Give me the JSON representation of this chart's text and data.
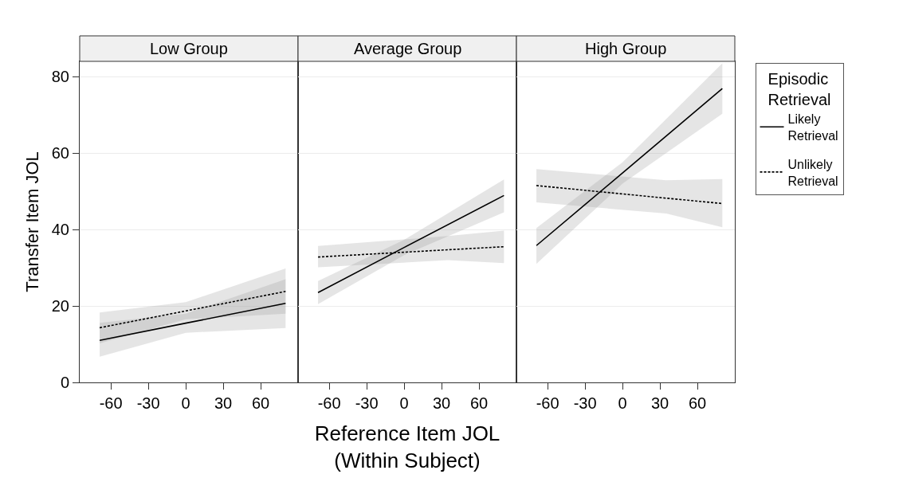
{
  "chart_data": [
    {
      "type": "line",
      "title": "Low Group",
      "ylabel": "Transfer Item JOL",
      "xlim": [
        -85,
        90
      ],
      "xticks": [
        -60,
        -30,
        0,
        30,
        60
      ],
      "ylim": [
        0,
        84
      ],
      "yticks": [
        0,
        20,
        40,
        60,
        80
      ],
      "grid": "y",
      "legend": "right",
      "x": [
        -69,
        0,
        80
      ],
      "series": [
        {
          "name": "Likely\nRetrieval",
          "color": "#000000",
          "line_style": "solid",
          "values": [
            11,
            15.5,
            20.7
          ],
          "lower": [
            6.7,
            13,
            14.2
          ],
          "upper": [
            15.6,
            18,
            27
          ]
        },
        {
          "name": "Unlikely\nRetrieval",
          "color": "#000000",
          "line_style": "dotted",
          "values": [
            14.3,
            18.7,
            23.8
          ],
          "lower": [
            10.2,
            16.5,
            18
          ],
          "upper": [
            18.3,
            21,
            29.8
          ]
        }
      ]
    },
    {
      "type": "line",
      "title": "Average Group",
      "xlabel": "Reference Item JOL\n(Within Subject)",
      "xlim": [
        -85,
        90
      ],
      "xticks": [
        -60,
        -30,
        0,
        30,
        60
      ],
      "ylim": [
        0,
        84
      ],
      "yticks": [
        0,
        20,
        40,
        60,
        80
      ],
      "grid": "y",
      "legend": "right",
      "tick_labels": "x",
      "x": [
        -69,
        0,
        80
      ],
      "series": [
        {
          "name": "Likely\nRetrieval",
          "color": "#000000",
          "line_style": "solid",
          "values": [
            23.5,
            35.3,
            48.9
          ],
          "lower": [
            20.5,
            33.3,
            44.5
          ],
          "upper": [
            26.5,
            37.3,
            53.1
          ]
        },
        {
          "name": "Unlikely\nRetrieval",
          "color": "#000000",
          "line_style": "dotted",
          "x": [
            -69,
            35,
            80
          ],
          "values": [
            32.8,
            34.7,
            35.5
          ],
          "lower": [
            30.1,
            32.0,
            31.2
          ],
          "upper": [
            35.7,
            38.3,
            39.7
          ]
        }
      ]
    },
    {
      "type": "line",
      "title": "High Group",
      "legend_title": "Episodic\nRetrieval",
      "xlim": [
        -85,
        90
      ],
      "xticks": [
        -60,
        -30,
        0,
        30,
        60
      ],
      "ylim": [
        0,
        84
      ],
      "yticks": [
        0,
        20,
        40,
        60,
        80
      ],
      "grid": "y",
      "legend": "right",
      "tick_labels": "x",
      "x": [
        -69,
        0,
        80
      ],
      "series": [
        {
          "name": "Likely\nRetrieval",
          "color": "#000000",
          "line_style": "solid",
          "values": [
            35.8,
            54.8,
            76.9
          ],
          "lower": [
            31.0,
            52,
            70.3
          ],
          "upper": [
            40.4,
            57.6,
            83.5
          ]
        },
        {
          "name": "Unlikely\nRetrieval",
          "color": "#000000",
          "line_style": "dotted",
          "x": [
            -69,
            35,
            80
          ],
          "values": [
            51.5,
            48.2,
            46.8
          ],
          "lower": [
            47.1,
            44.2,
            40.6
          ],
          "upper": [
            55.8,
            52.9,
            53.2
          ]
        }
      ]
    }
  ]
}
